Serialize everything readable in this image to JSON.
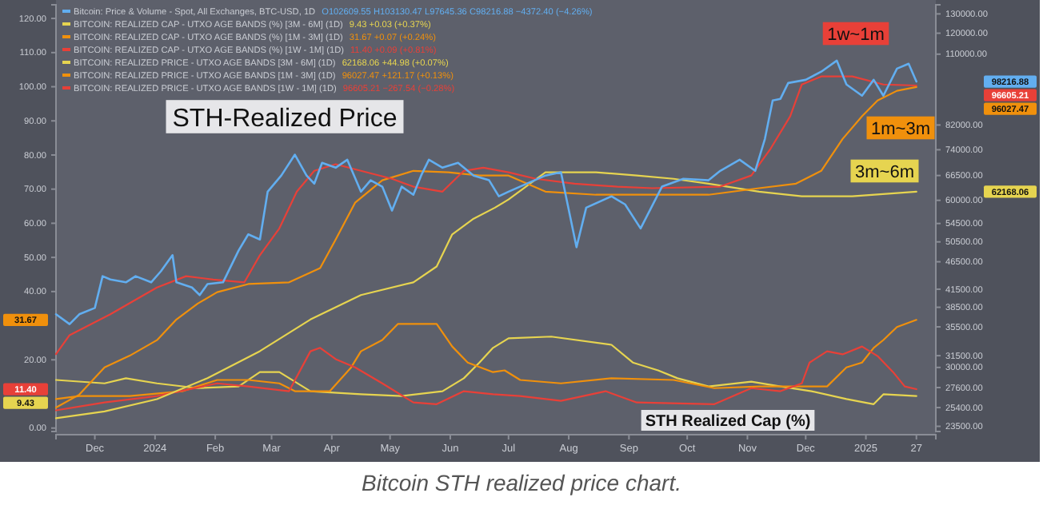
{
  "chart_data": {
    "type": "line",
    "title": "STH-Realized Price",
    "subtitle": "STH Realized Cap (%)",
    "xlim": [
      "2023-11-11",
      "2025-02-06"
    ],
    "xticks": [
      {
        "value": "2023-12-01",
        "label": "Dec"
      },
      {
        "value": "2024-01-01",
        "label": "2024"
      },
      {
        "value": "2024-02-01",
        "label": "Feb"
      },
      {
        "value": "2024-03-01",
        "label": "Mar"
      },
      {
        "value": "2024-04-01",
        "label": "Apr"
      },
      {
        "value": "2024-05-01",
        "label": "May"
      },
      {
        "value": "2024-06-01",
        "label": "Jun"
      },
      {
        "value": "2024-07-01",
        "label": "Jul"
      },
      {
        "value": "2024-08-01",
        "label": "Aug"
      },
      {
        "value": "2024-09-01",
        "label": "Sep"
      },
      {
        "value": "2024-10-01",
        "label": "Oct"
      },
      {
        "value": "2024-11-01",
        "label": "Nov"
      },
      {
        "value": "2024-12-01",
        "label": "Dec"
      },
      {
        "value": "2025-01-01",
        "label": "2025"
      },
      {
        "value": "2025-01-27",
        "label": "27"
      }
    ],
    "ylim": [
      -1,
      124
    ],
    "yticks": [
      {
        "value": 0,
        "label": "0.00"
      },
      {
        "value": 20,
        "label": "20.00"
      },
      {
        "value": 40,
        "label": "40.00"
      },
      {
        "value": 50,
        "label": "50.00"
      },
      {
        "value": 60,
        "label": "60.00"
      },
      {
        "value": 70,
        "label": "70.00"
      },
      {
        "value": 80,
        "label": "80.00"
      },
      {
        "value": 90,
        "label": "90.00"
      },
      {
        "value": 100,
        "label": "100.00"
      },
      {
        "value": 110,
        "label": "110.00"
      },
      {
        "value": 120,
        "label": "120.00"
      }
    ],
    "y2lim": [
      23000,
      135000
    ],
    "log": "y2",
    "y2ticks": [
      {
        "value": 130000,
        "label": "130000.00"
      },
      {
        "value": 120000,
        "label": "120000.00"
      },
      {
        "value": 110000,
        "label": "110000.00"
      },
      {
        "value": 82000,
        "label": "82000.00"
      },
      {
        "value": 74000,
        "label": "74000.00"
      },
      {
        "value": 66500,
        "label": "66500.00"
      },
      {
        "value": 60000,
        "label": "60000.00"
      },
      {
        "value": 54500,
        "label": "54500.00"
      },
      {
        "value": 50500,
        "label": "50500.00"
      },
      {
        "value": 46500,
        "label": "46500.00"
      },
      {
        "value": 41500,
        "label": "41500.00"
      },
      {
        "value": 38500,
        "label": "38500.00"
      },
      {
        "value": 35500,
        "label": "35500.00"
      },
      {
        "value": 31500,
        "label": "31500.00"
      },
      {
        "value": 30000,
        "label": "30000.00"
      },
      {
        "value": 27600,
        "label": "27600.00"
      },
      {
        "value": 25400,
        "label": "25400.00"
      },
      {
        "value": 23500,
        "label": "23500.00"
      }
    ],
    "legend": "top left",
    "series": [
      {
        "name": "Bitcoin: Price & Volume - Spot, All Exchanges, BTC-USD, 1D",
        "color": "#62aef0",
        "axis": "y2",
        "x": [
          "2023-11-11",
          "2023-11-18",
          "2023-11-23",
          "2023-12-01",
          "2023-12-05",
          "2023-12-09",
          "2023-12-17",
          "2023-12-22",
          "2023-12-30",
          "2024-01-04",
          "2024-01-10",
          "2024-01-12",
          "2024-01-20",
          "2024-01-24",
          "2024-01-28",
          "2024-02-05",
          "2024-02-13",
          "2024-02-18",
          "2024-02-24",
          "2024-02-28",
          "2024-03-06",
          "2024-03-13",
          "2024-03-19",
          "2024-03-23",
          "2024-03-27",
          "2024-04-03",
          "2024-04-09",
          "2024-04-16",
          "2024-04-21",
          "2024-04-27",
          "2024-05-02",
          "2024-05-07",
          "2024-05-13",
          "2024-05-17",
          "2024-05-21",
          "2024-05-28",
          "2024-06-05",
          "2024-06-13",
          "2024-06-21",
          "2024-06-26",
          "2024-07-01",
          "2024-07-20",
          "2024-07-28",
          "2024-08-05",
          "2024-08-10",
          "2024-08-23",
          "2024-08-30",
          "2024-09-07",
          "2024-09-18",
          "2024-09-29",
          "2024-10-12",
          "2024-10-18",
          "2024-10-28",
          "2024-11-05",
          "2024-11-10",
          "2024-11-14",
          "2024-11-18",
          "2024-11-22",
          "2024-12-01",
          "2024-12-09",
          "2024-12-17",
          "2024-12-22",
          "2024-12-30",
          "2025-01-05",
          "2025-01-10",
          "2025-01-17",
          "2025-01-23",
          "2025-01-27"
        ],
        "values": [
          37400,
          35900,
          37400,
          38400,
          43800,
          43200,
          42700,
          43800,
          42700,
          44700,
          47800,
          42700,
          41800,
          40500,
          42400,
          42700,
          48700,
          52100,
          51000,
          62200,
          66500,
          72500,
          66500,
          64300,
          70100,
          68700,
          71000,
          62200,
          65200,
          63500,
          57500,
          63500,
          61400,
          66500,
          71000,
          68700,
          70100,
          66500,
          65200,
          61000,
          62200,
          66500,
          67400,
          49400,
          58200,
          61000,
          59000,
          53400,
          63500,
          65600,
          65200,
          67800,
          71000,
          67800,
          77400,
          90800,
          91400,
          97600,
          98900,
          102300,
          107100,
          97000,
          92600,
          98900,
          92600,
          103600,
          105700,
          98200
        ]
      },
      {
        "name": "BITCOIN: REALIZED CAP - UTXO AGE BANDS (%) [3M - 6M] (1D)",
        "color": "#e6d450",
        "axis": "y",
        "x": [
          "2023-11-11",
          "2023-12-06",
          "2023-12-17",
          "2024-01-02",
          "2024-01-23",
          "2024-02-13",
          "2024-02-24",
          "2024-03-05",
          "2024-03-21",
          "2024-04-16",
          "2024-05-07",
          "2024-05-28",
          "2024-06-08",
          "2024-06-16",
          "2024-06-23",
          "2024-07-01",
          "2024-07-23",
          "2024-08-23",
          "2024-09-03",
          "2024-09-16",
          "2024-09-26",
          "2024-10-12",
          "2024-11-03",
          "2024-11-18",
          "2024-12-04",
          "2024-12-22",
          "2025-01-05",
          "2025-01-10",
          "2025-01-27"
        ],
        "values": [
          14.1,
          13.1,
          14.6,
          13.1,
          11.7,
          12.2,
          16.4,
          16.4,
          10.8,
          9.9,
          9.4,
          10.8,
          14.6,
          19.2,
          23.5,
          26.3,
          26.8,
          24.4,
          19.2,
          16.9,
          14.6,
          12.2,
          13.6,
          12.2,
          10.8,
          8.5,
          7.0,
          9.9,
          9.4
        ]
      },
      {
        "name": "BITCOIN: REALIZED CAP - UTXO AGE BANDS (%) [1M - 3M] (1D)",
        "color": "#f0900c",
        "axis": "y",
        "x": [
          "2023-11-11",
          "2023-11-23",
          "2023-12-19",
          "2024-01-15",
          "2024-02-02",
          "2024-02-18",
          "2024-03-05",
          "2024-03-13",
          "2024-03-31",
          "2024-04-11",
          "2024-04-16",
          "2024-04-27",
          "2024-05-05",
          "2024-05-25",
          "2024-06-02",
          "2024-06-10",
          "2024-06-23",
          "2024-06-29",
          "2024-07-07",
          "2024-07-28",
          "2024-08-23",
          "2024-09-24",
          "2024-10-15",
          "2024-11-07",
          "2024-11-26",
          "2024-12-12",
          "2024-12-22",
          "2024-12-30",
          "2025-01-05",
          "2025-01-10",
          "2025-01-17",
          "2025-01-27"
        ],
        "values": [
          8.5,
          9.4,
          9.4,
          10.8,
          14.1,
          14.1,
          13.1,
          10.8,
          10.8,
          17.8,
          22.5,
          25.8,
          30.5,
          30.5,
          23.9,
          19.2,
          16.4,
          16.9,
          14.1,
          13.1,
          14.6,
          14.1,
          11.7,
          12.2,
          12.2,
          12.2,
          17.8,
          19.2,
          23.5,
          25.8,
          29.6,
          31.7
        ]
      },
      {
        "name": "BITCOIN: REALIZED CAP - UTXO AGE BANDS (%) [1W - 1M] (1D)",
        "color": "#e84038",
        "axis": "y",
        "x": [
          "2023-11-11",
          "2023-12-06",
          "2024-01-02",
          "2024-02-02",
          "2024-02-18",
          "2024-03-10",
          "2024-03-21",
          "2024-03-26",
          "2024-04-03",
          "2024-04-13",
          "2024-04-27",
          "2024-05-13",
          "2024-05-25",
          "2024-06-08",
          "2024-06-23",
          "2024-07-07",
          "2024-07-28",
          "2024-08-20",
          "2024-09-05",
          "2024-10-15",
          "2024-11-03",
          "2024-11-18",
          "2024-11-29",
          "2024-12-03",
          "2024-12-12",
          "2024-12-20",
          "2024-12-30",
          "2025-01-07",
          "2025-01-15",
          "2025-01-21",
          "2025-01-27"
        ],
        "values": [
          5.2,
          7.5,
          9.4,
          13.1,
          12.2,
          10.8,
          22.5,
          23.5,
          20.2,
          17.8,
          13.1,
          7.5,
          7.0,
          10.8,
          9.9,
          9.4,
          8.0,
          10.8,
          7.5,
          7.0,
          11.7,
          10.8,
          13.1,
          19.2,
          22.5,
          21.6,
          23.9,
          21.1,
          16.4,
          12.2,
          11.4
        ]
      },
      {
        "name": "BITCOIN: REALIZED PRICE - UTXO AGE BANDS [3M - 6M] (1D)",
        "color": "#e6d450",
        "axis": "y2",
        "x": [
          "2023-11-11",
          "2023-12-06",
          "2024-01-02",
          "2024-01-28",
          "2024-02-24",
          "2024-03-21",
          "2024-04-16",
          "2024-05-13",
          "2024-05-25",
          "2024-06-02",
          "2024-06-13",
          "2024-06-24",
          "2024-07-01",
          "2024-07-20",
          "2024-08-15",
          "2024-09-05",
          "2024-09-24",
          "2024-10-12",
          "2024-11-07",
          "2024-11-29",
          "2024-12-25",
          "2025-01-27"
        ],
        "values": [
          24300,
          25000,
          26300,
          28700,
          32100,
          36600,
          40500,
          42700,
          45600,
          52100,
          55600,
          58200,
          60200,
          67400,
          67400,
          66500,
          65600,
          64300,
          62200,
          61000,
          61000,
          62200
        ]
      },
      {
        "name": "BITCOIN: REALIZED PRICE - UTXO AGE BANDS [1M - 3M] (1D)",
        "color": "#f0900c",
        "axis": "y2",
        "x": [
          "2023-11-11",
          "2023-11-23",
          "2023-12-06",
          "2023-12-19",
          "2024-01-02",
          "2024-01-12",
          "2024-01-23",
          "2024-02-02",
          "2024-02-18",
          "2024-03-10",
          "2024-03-26",
          "2024-04-03",
          "2024-04-13",
          "2024-04-27",
          "2024-05-13",
          "2024-05-31",
          "2024-06-16",
          "2024-07-01",
          "2024-07-20",
          "2024-08-15",
          "2024-09-11",
          "2024-10-12",
          "2024-11-07",
          "2024-11-26",
          "2024-12-09",
          "2024-12-20",
          "2024-12-30",
          "2025-01-07",
          "2025-01-17",
          "2025-01-27"
        ],
        "values": [
          25400,
          26800,
          30000,
          31500,
          33600,
          36600,
          39100,
          41000,
          42400,
          42700,
          45300,
          51000,
          59400,
          65200,
          67800,
          67400,
          66500,
          66500,
          62200,
          61400,
          61400,
          61400,
          63100,
          64300,
          67800,
          77400,
          85000,
          90800,
          94500,
          96000
        ]
      },
      {
        "name": "BITCOIN: REALIZED PRICE - UTXO AGE BANDS [1W - 1M] (1D)",
        "color": "#e84038",
        "axis": "y2",
        "x": [
          "2023-11-11",
          "2023-11-18",
          "2023-12-09",
          "2024-01-02",
          "2024-01-17",
          "2024-01-31",
          "2024-02-16",
          "2024-02-24",
          "2024-03-05",
          "2024-03-14",
          "2024-03-23",
          "2024-04-03",
          "2024-04-16",
          "2024-05-02",
          "2024-05-13",
          "2024-05-28",
          "2024-06-08",
          "2024-06-18",
          "2024-07-01",
          "2024-07-15",
          "2024-08-04",
          "2024-08-26",
          "2024-09-13",
          "2024-10-18",
          "2024-11-03",
          "2024-11-13",
          "2024-11-23",
          "2024-11-29",
          "2024-12-09",
          "2024-12-25",
          "2025-01-10",
          "2025-01-27"
        ],
        "values": [
          31700,
          34300,
          37400,
          41800,
          43800,
          43200,
          42700,
          47800,
          53400,
          62200,
          67800,
          69700,
          67800,
          65600,
          63500,
          62200,
          67800,
          68700,
          67400,
          65600,
          64300,
          63500,
          63100,
          63500,
          66500,
          74400,
          85000,
          97000,
          100300,
          100300,
          97000,
          96600
        ]
      }
    ],
    "annotations": [
      "O102609.55 H103130.47 L97645.36 C98216.88 −4372.40 (−4.26%)",
      "9.43 +0.03 (+0.37%)",
      "31.67 +0.07 (+0.24%)",
      "11.40 +0.09 (+0.81%)",
      "62168.06 +44.98 (+0.07%)",
      "96027.47 +121.17 (+0.13%)",
      "96605.21 −267.54 (−0.28%)",
      "98216.88",
      "9.43",
      "31.67",
      "11.40",
      "62168.06",
      "96027.47",
      "96605.21",
      "1w~1m",
      "1m~3m",
      "3m~6m",
      "Bitcoin STH realized price chart."
    ]
  }
}
